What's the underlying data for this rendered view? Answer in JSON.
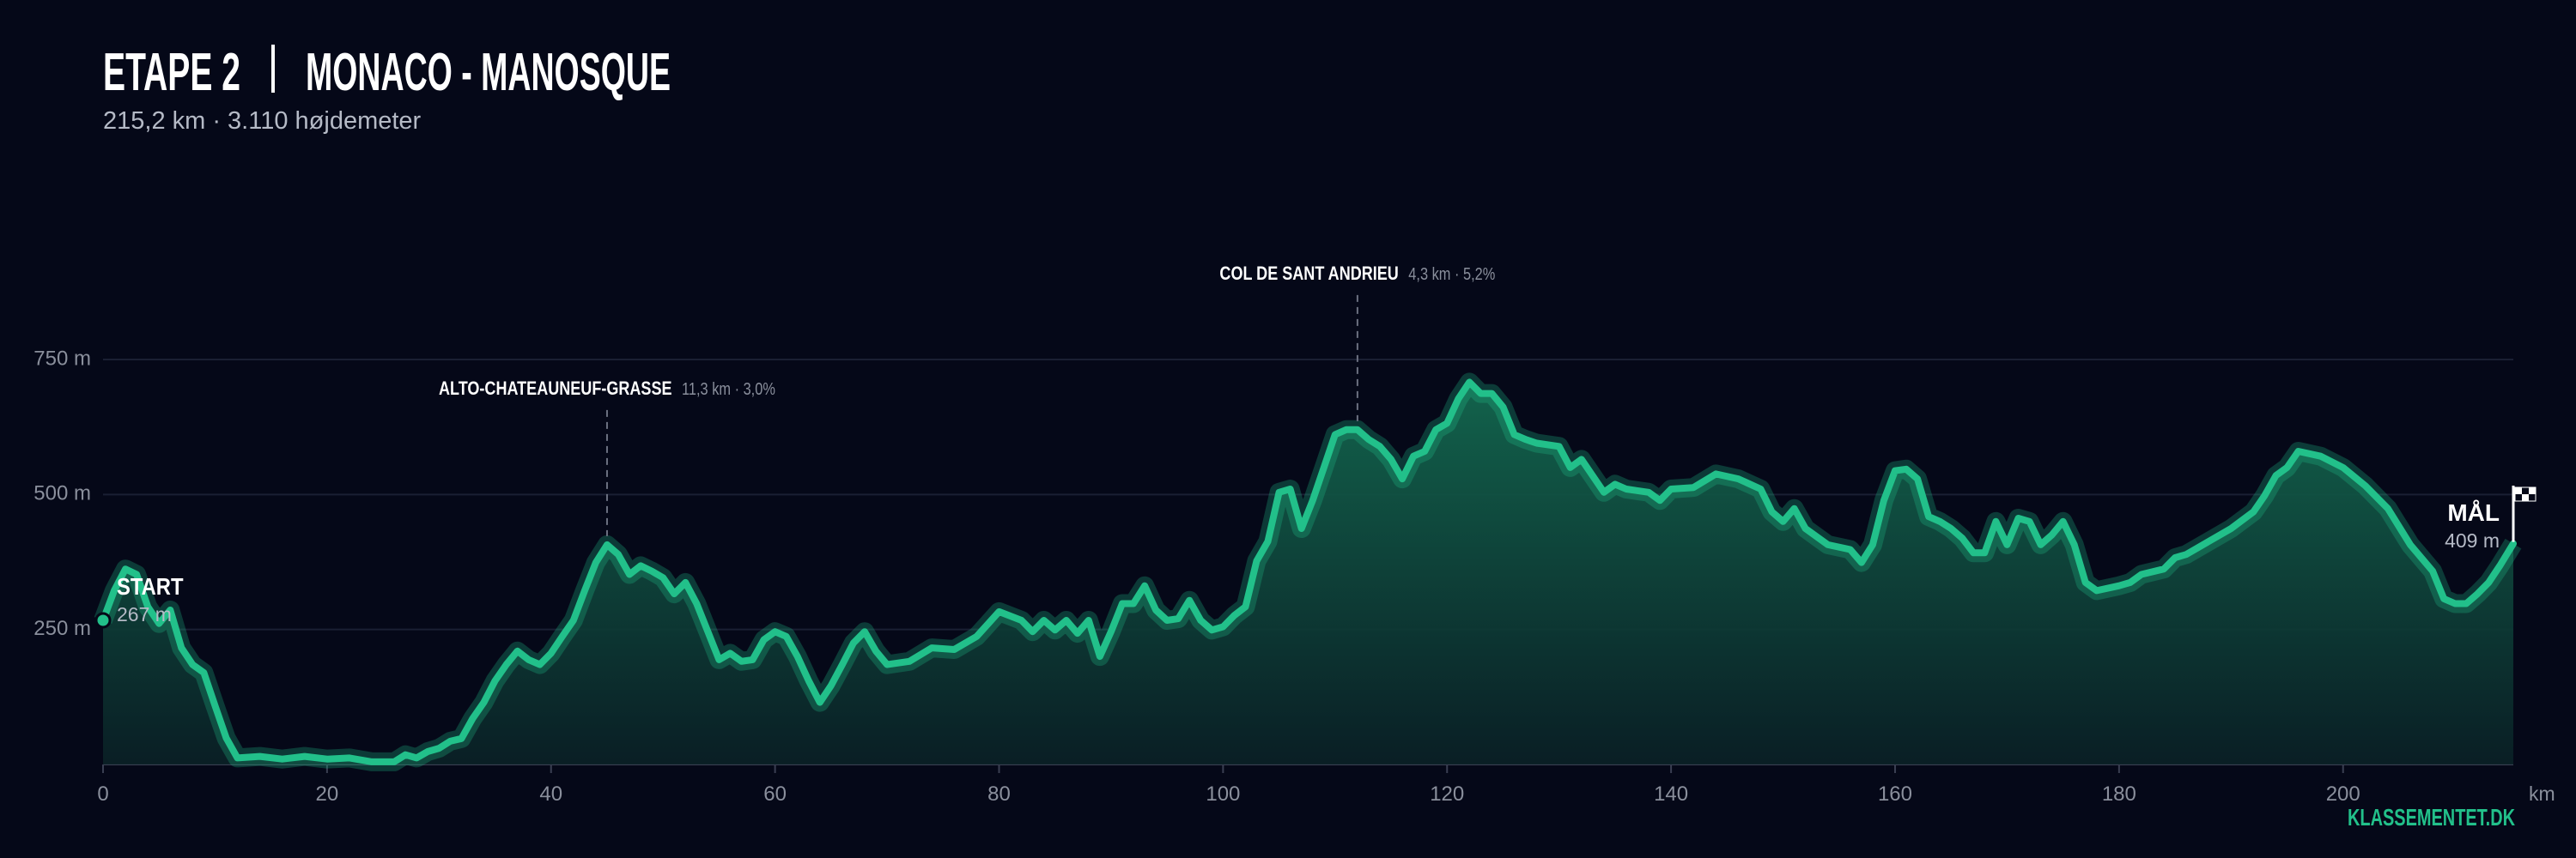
{
  "chart_data": {
    "type": "area",
    "title": "ETAPE 2",
    "route": "MONACO - MANOSQUE",
    "subtitle": "215,2 km  ·  3.110 højdemeter",
    "x_unit": "km",
    "brand": "KLASSEMENTET.DK",
    "color": "#22c08a",
    "xlim": [
      0,
      215.2
    ],
    "xticks": [
      0,
      20,
      40,
      60,
      80,
      100,
      120,
      140,
      160,
      180,
      200
    ],
    "ylim": [
      0,
      750
    ],
    "yticks": [
      {
        "value": 250,
        "label": "250 m"
      },
      {
        "value": 500,
        "label": "500 m"
      },
      {
        "value": 750,
        "label": "750 m"
      }
    ],
    "grid": true,
    "start": {
      "label": "START",
      "elevation_label": "267 m"
    },
    "finish": {
      "label": "MÅL",
      "elevation_label": "409 m"
    },
    "climbs": [
      {
        "name": "ALTO-CHATEAUNEUF-GRASSE",
        "detail": "11,3 km · 3,0%",
        "km": 45
      },
      {
        "name": "COL DE SANT ANDRIEU",
        "detail": "4,3 km · 5,2%",
        "km": 112
      }
    ],
    "x": [
      0,
      1,
      2,
      3,
      4,
      5,
      6,
      7,
      8,
      9,
      10,
      11,
      12,
      14,
      16,
      18,
      20,
      22,
      24,
      26,
      27,
      28,
      29,
      30,
      31,
      32,
      33,
      34,
      35,
      36,
      37,
      38,
      39,
      40,
      41,
      42,
      43,
      44,
      45,
      46,
      47,
      48,
      49,
      50,
      51,
      52,
      53,
      54,
      55,
      56,
      57,
      58,
      59,
      60,
      61,
      62,
      63,
      64,
      65,
      66,
      67,
      68,
      69,
      70,
      72,
      74,
      76,
      78,
      80,
      82,
      83,
      84,
      85,
      86,
      87,
      88,
      89,
      90,
      91,
      92,
      93,
      94,
      95,
      96,
      97,
      98,
      99,
      100,
      101,
      102,
      103,
      104,
      105,
      106,
      107,
      108,
      109,
      110,
      111,
      112,
      113,
      114,
      115,
      116,
      117,
      118,
      119,
      120,
      121,
      122,
      123,
      124,
      125,
      126,
      127,
      128,
      130,
      131,
      132,
      134,
      135,
      136,
      138,
      139,
      140,
      142,
      144,
      146,
      148,
      149,
      150,
      151,
      152,
      154,
      156,
      157,
      158,
      159,
      160,
      161,
      162,
      163,
      164,
      165,
      166,
      167,
      168,
      169,
      170,
      171,
      172,
      173,
      174,
      175,
      176,
      177,
      178,
      180,
      181,
      182,
      184,
      185,
      186,
      188,
      190,
      192,
      193,
      194,
      195,
      196,
      198,
      200,
      202,
      204,
      206,
      208,
      209,
      210,
      211,
      212,
      213,
      214,
      215.2
    ],
    "values": [
      267,
      322,
      362,
      352,
      292,
      261,
      286,
      216,
      185,
      170,
      109,
      49,
      12,
      15,
      10,
      15,
      10,
      12,
      5,
      5,
      18,
      12,
      24,
      30,
      43,
      48,
      85,
      115,
      155,
      185,
      210,
      194,
      185,
      206,
      237,
      267,
      322,
      374,
      407,
      389,
      352,
      368,
      358,
      346,
      316,
      337,
      298,
      246,
      194,
      206,
      191,
      194,
      231,
      246,
      237,
      200,
      155,
      115,
      146,
      185,
      225,
      246,
      210,
      185,
      191,
      216,
      213,
      237,
      283,
      267,
      246,
      267,
      249,
      267,
      243,
      267,
      200,
      246,
      298,
      298,
      331,
      286,
      267,
      270,
      304,
      267,
      249,
      255,
      276,
      292,
      377,
      413,
      504,
      510,
      437,
      489,
      550,
      611,
      620,
      620,
      602,
      589,
      565,
      529,
      571,
      580,
      620,
      632,
      677,
      708,
      687,
      687,
      662,
      611,
      602,
      595,
      589,
      550,
      565,
      504,
      519,
      510,
      504,
      489,
      510,
      513,
      538,
      529,
      510,
      468,
      450,
      474,
      437,
      407,
      398,
      374,
      407,
      489,
      544,
      547,
      529,
      459,
      450,
      437,
      419,
      392,
      392,
      450,
      407,
      456,
      450,
      407,
      425,
      450,
      407,
      337,
      322,
      331,
      337,
      352,
      362,
      383,
      389,
      413,
      437,
      468,
      498,
      535,
      550,
      580,
      571,
      550,
      516,
      474,
      407,
      358,
      307,
      298,
      298,
      316,
      337,
      368,
      409
    ]
  }
}
